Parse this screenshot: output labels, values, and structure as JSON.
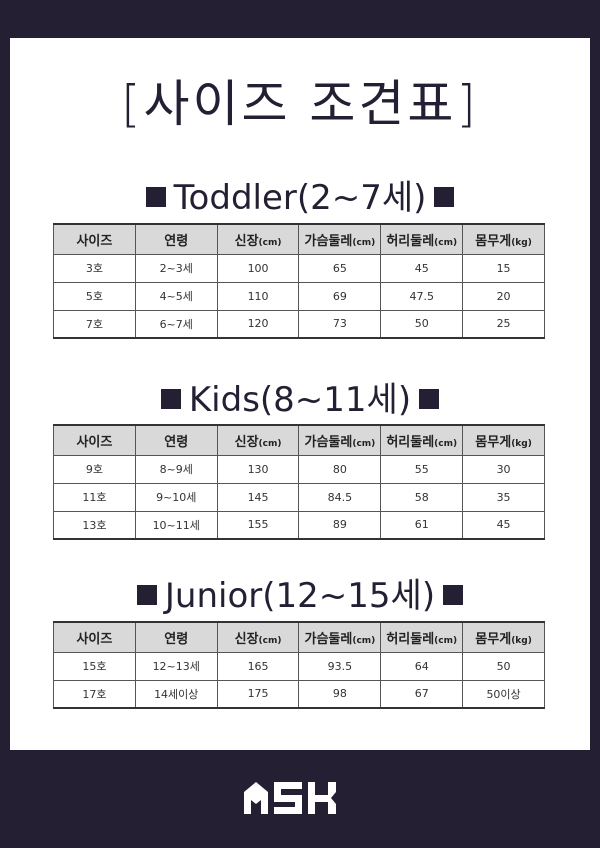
{
  "title": "[사이즈 조견표]",
  "headers": [
    "사이즈",
    "연령",
    "신장",
    "가슴둘레",
    "허리둘레",
    "몸무게"
  ],
  "units": [
    "",
    "",
    "(cm)",
    "(cm)",
    "(cm)",
    "(kg)"
  ],
  "sections": [
    {
      "heading": "Toddler(2~7세)",
      "rows": [
        [
          "3호",
          "2~3세",
          "100",
          "65",
          "45",
          "15"
        ],
        [
          "5호",
          "4~5세",
          "110",
          "69",
          "47.5",
          "20"
        ],
        [
          "7호",
          "6~7세",
          "120",
          "73",
          "50",
          "25"
        ]
      ]
    },
    {
      "heading": "Kids(8~11세)",
      "rows": [
        [
          "9호",
          "8~9세",
          "130",
          "80",
          "55",
          "30"
        ],
        [
          "11호",
          "9~10세",
          "145",
          "84.5",
          "58",
          "35"
        ],
        [
          "13호",
          "10~11세",
          "155",
          "89",
          "61",
          "45"
        ]
      ]
    },
    {
      "heading": "Junior(12~15세)",
      "rows": [
        [
          "15호",
          "12~13세",
          "165",
          "93.5",
          "64",
          "50"
        ],
        [
          "17호",
          "14세이상",
          "175",
          "98",
          "67",
          "50이상"
        ]
      ]
    }
  ],
  "logo": "ASK",
  "colors": {
    "background": "#241f33",
    "header_bg": "#d9d9d9"
  }
}
